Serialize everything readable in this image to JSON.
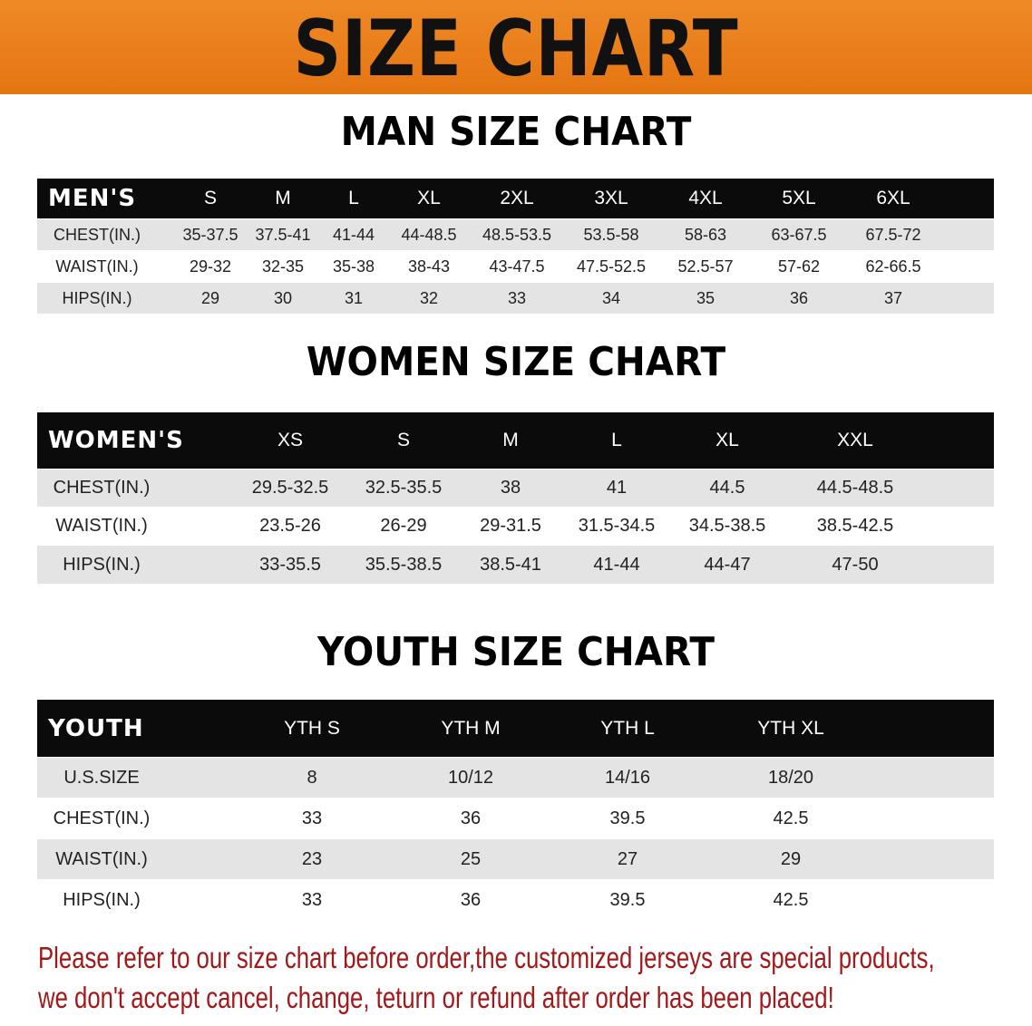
{
  "banner_title": "SIZE CHART",
  "sections": [
    {
      "title": "MAN SIZE CHART",
      "header": [
        "MEN'S",
        "S",
        "M",
        "L",
        "XL",
        "2XL",
        "3XL",
        "4XL",
        "5XL",
        "6XL"
      ],
      "rows": [
        [
          "CHEST(IN.)",
          "35-37.5",
          "37.5-41",
          "41-44",
          "44-48.5",
          "48.5-53.5",
          "53.5-58",
          "58-63",
          "63-67.5",
          "67.5-72"
        ],
        [
          "WAIST(IN.)",
          "29-32",
          "32-35",
          "35-38",
          "38-43",
          "43-47.5",
          "47.5-52.5",
          "52.5-57",
          "57-62",
          "62-66.5"
        ],
        [
          "HIPS(IN.)",
          "29",
          "30",
          "31",
          "32",
          "33",
          "34",
          "35",
          "36",
          "37"
        ]
      ]
    },
    {
      "title": "WOMEN SIZE CHART",
      "header": [
        "WOMEN'S",
        "XS",
        "S",
        "M",
        "L",
        "XL",
        "XXL"
      ],
      "rows": [
        [
          "CHEST(IN.)",
          "29.5-32.5",
          "32.5-35.5",
          "38",
          "41",
          "44.5",
          "44.5-48.5"
        ],
        [
          "WAIST(IN.)",
          "23.5-26",
          "26-29",
          "29-31.5",
          "31.5-34.5",
          "34.5-38.5",
          "38.5-42.5"
        ],
        [
          "HIPS(IN.)",
          "33-35.5",
          "35.5-38.5",
          "38.5-41",
          "41-44",
          "44-47",
          "47-50"
        ]
      ]
    },
    {
      "title": "YOUTH SIZE CHART",
      "header": [
        "YOUTH",
        "YTH S",
        "YTH M",
        "YTH L",
        "YTH XL"
      ],
      "rows": [
        [
          "U.S.SIZE",
          "8",
          "10/12",
          "14/16",
          "18/20"
        ],
        [
          "CHEST(IN.)",
          "33",
          "36",
          "39.5",
          "42.5"
        ],
        [
          "WAIST(IN.)",
          "23",
          "25",
          "27",
          "29"
        ],
        [
          "HIPS(IN.)",
          "33",
          "36",
          "39.5",
          "42.5"
        ]
      ]
    }
  ],
  "note_lines": [
    "Please refer to our size chart before order,the customized jerseys are special products,",
    "we don't accept cancel, change, teturn or refund after order has been placed!"
  ],
  "colors": {
    "banner": "#e87d18",
    "header_row": "#0b0b0b",
    "stripe": "#e4e4e4",
    "note": "#a31818"
  }
}
